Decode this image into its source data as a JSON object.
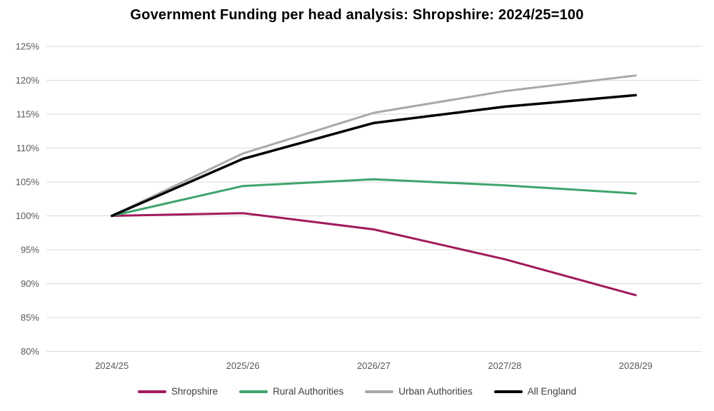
{
  "title": "Government Funding per head analysis: Shropshire: 2024/25=100",
  "chart_data": {
    "type": "line",
    "title": "Government Funding per head analysis: Shropshire: 2024/25=100",
    "categories": [
      "2024/25",
      "2025/26",
      "2026/27",
      "2027/28",
      "2028/29"
    ],
    "series": [
      {
        "name": "Shropshire",
        "color": "#a21a5e",
        "stroke_width": 3,
        "values": [
          100,
          100.4,
          98.0,
          93.6,
          88.3
        ]
      },
      {
        "name": "Rural Authorities",
        "color": "#3fa56c",
        "stroke_width": 3,
        "values": [
          100,
          104.4,
          105.4,
          104.5,
          103.3
        ]
      },
      {
        "name": "Urban Authorities",
        "color": "#a9a9a9",
        "stroke_width": 3,
        "values": [
          100,
          109.2,
          115.2,
          118.4,
          120.7
        ]
      },
      {
        "name": "All England",
        "color": "#000000",
        "stroke_width": 3.5,
        "values": [
          100,
          108.4,
          113.7,
          116.1,
          117.8
        ]
      }
    ],
    "yticks": [
      {
        "value": 125,
        "label": "125%"
      },
      {
        "value": 120,
        "label": "120%"
      },
      {
        "value": 115,
        "label": "115%"
      },
      {
        "value": 110,
        "label": "110%"
      },
      {
        "value": 105,
        "label": "105%"
      },
      {
        "value": 100,
        "label": "100%"
      },
      {
        "value": 95,
        "label": "95%"
      },
      {
        "value": 90,
        "label": "90%"
      },
      {
        "value": 85,
        "label": "85%"
      },
      {
        "value": 80,
        "label": "80%"
      }
    ],
    "xlabel": "",
    "ylabel": "",
    "ylim": [
      80,
      125
    ],
    "grid": "horizontal",
    "legend_position": "bottom"
  },
  "colors": {
    "background": "#ffffff",
    "gridline": "#d9d9d9",
    "tick_label": "#595959",
    "legend_label": "#404040",
    "title": "#000000"
  }
}
